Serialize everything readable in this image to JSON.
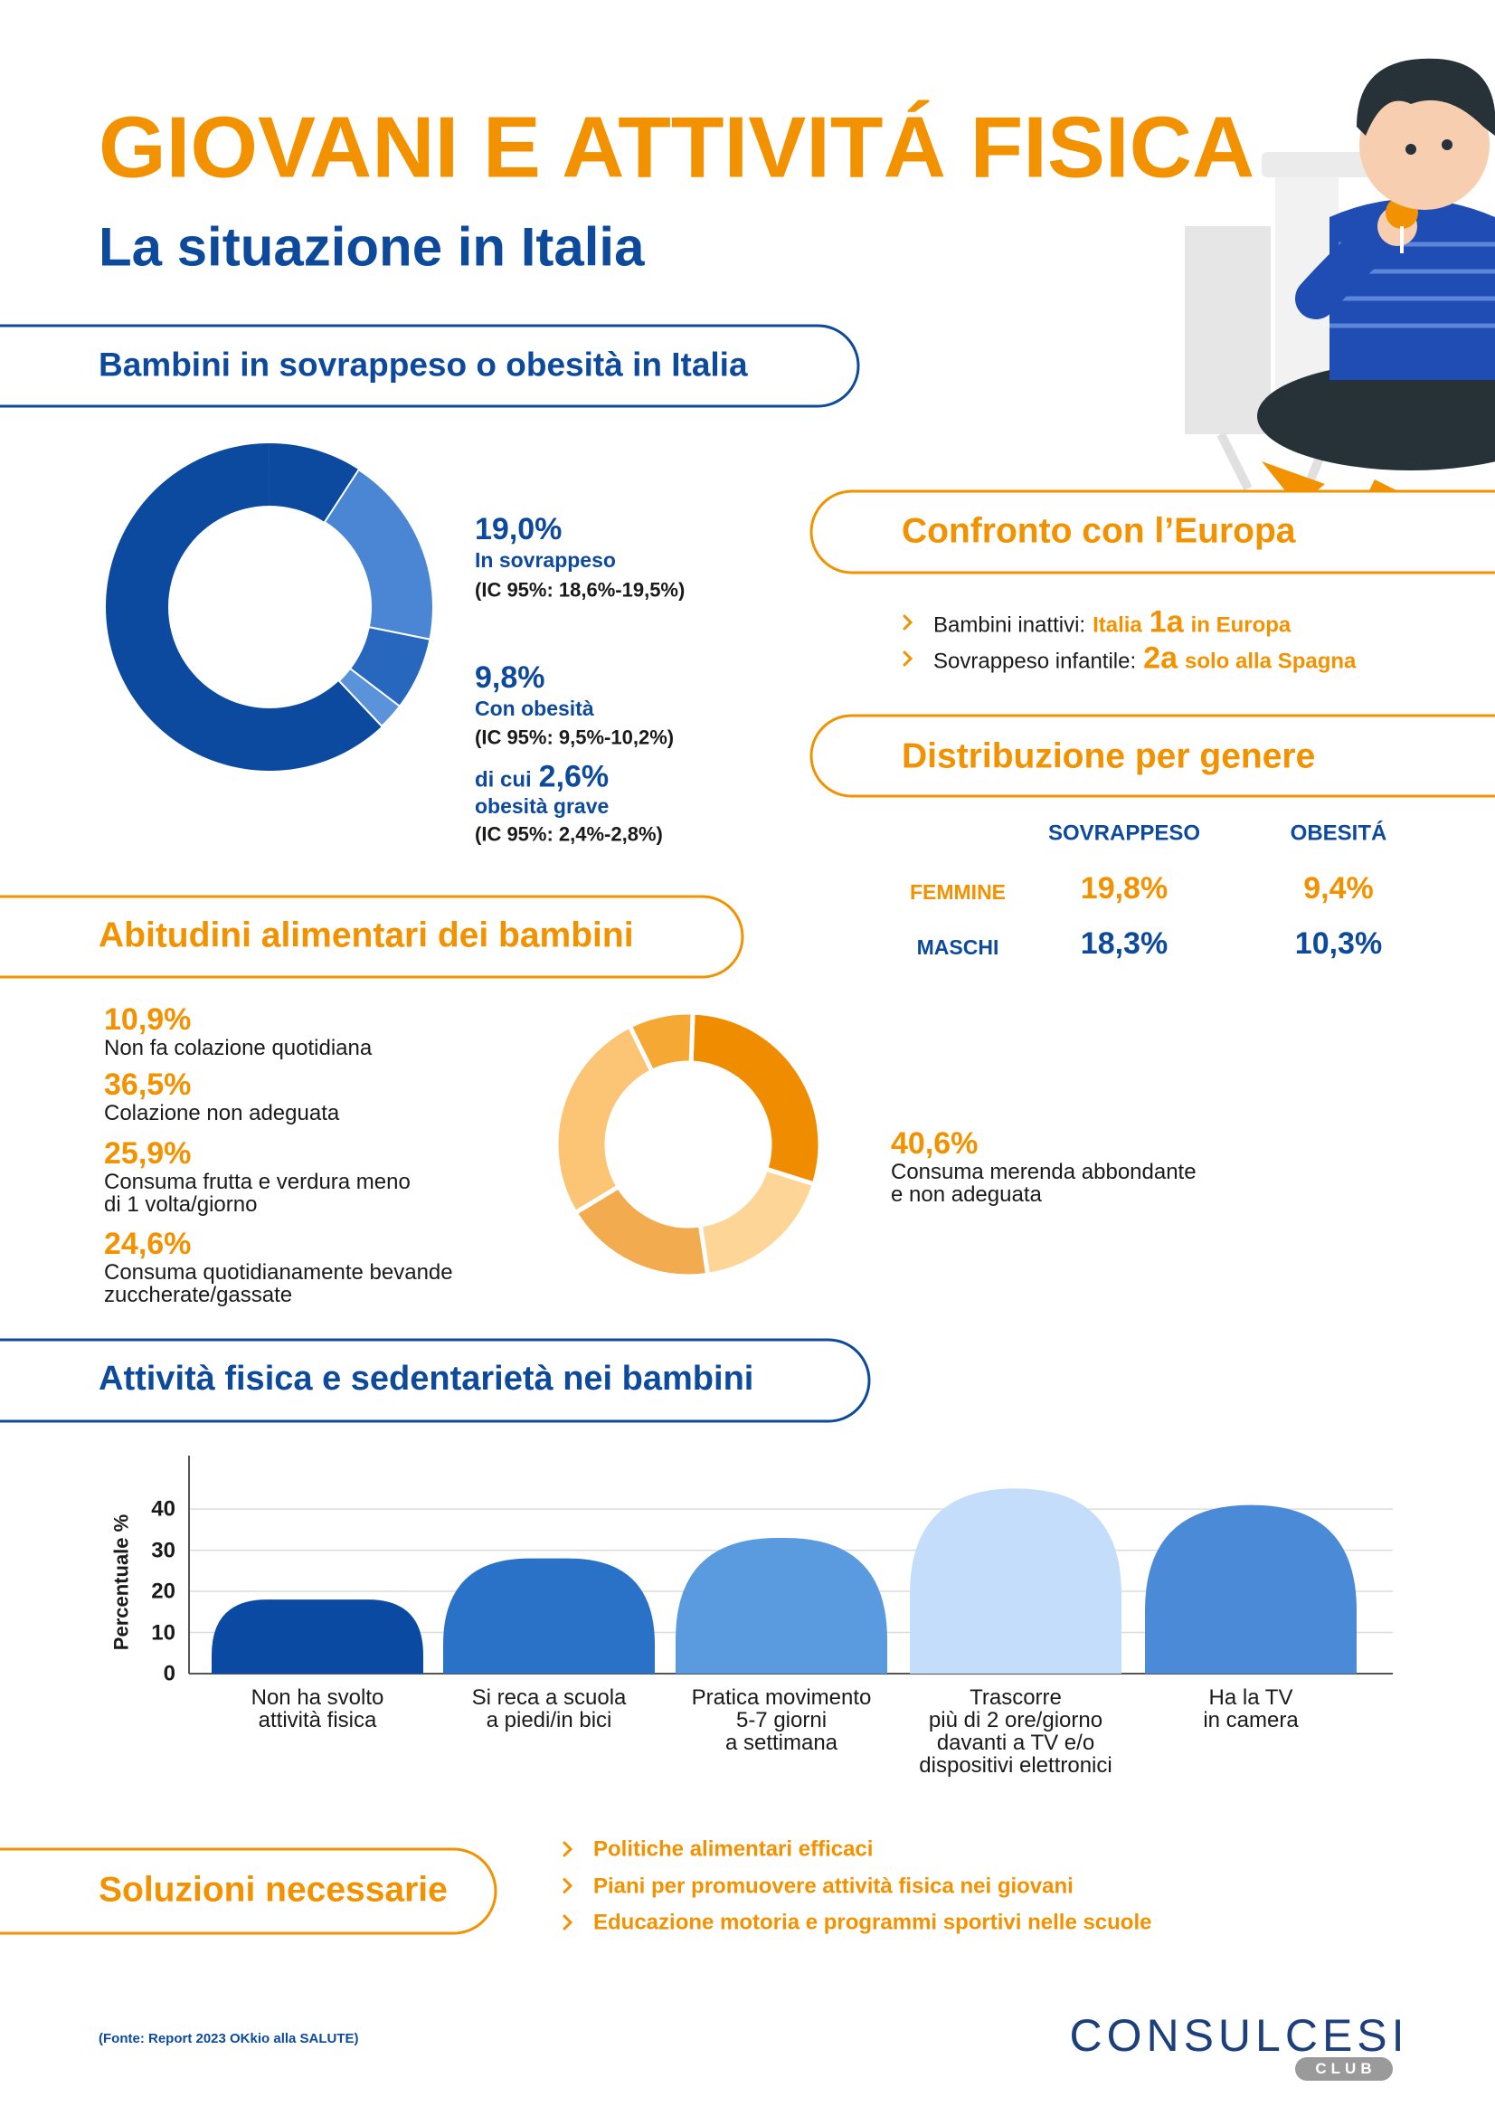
{
  "header": {
    "title": "GIOVANI E ATTIVITÁ FISICA",
    "subtitle": "La situazione in Italia"
  },
  "sections": {
    "overweight": "Bambini in sovrappeso o obesità in Italia",
    "europe": "Confronto con l’Europa",
    "gender": "Distribuzione per genere",
    "diet": "Abitudini alimentari dei bambini",
    "activity": "Attività fisica e sedentarietà nei bambini",
    "solutions": "Soluzioni necessarie"
  },
  "chart_data": [
    {
      "type": "donut",
      "categories": [
        "In sovrappeso",
        "Con obesità",
        "obesità grave"
      ],
      "values": [
        19.0,
        9.8,
        2.6
      ],
      "value_labels": [
        "19,0%",
        "9,8%",
        "2,6%"
      ],
      "intervals": [
        "(IC 95%: 18,6%-19,5%)",
        "(IC 95%: 9,5%-10,2%)",
        "(IC 95%: 2,4%-2,8%)"
      ],
      "subset_prefix": "di cui",
      "colors": [
        "#4a86d4",
        "#2767bd",
        "#5b93da"
      ],
      "base_color": "#0c4aa0"
    },
    {
      "type": "donut",
      "categories": [
        "Non fa colazione quotidiana",
        "Colazione non adeguata",
        "Consuma frutta e verdura meno\ndi 1 volta/giorno",
        "Consuma quotidianamente bevande\nzuccherate/gassate",
        "Consuma merenda abbondante\ne non adeguata"
      ],
      "values": [
        10.9,
        36.5,
        25.9,
        24.6,
        40.6
      ],
      "value_labels": [
        "10,9%",
        "36,5%",
        "25,9%",
        "24,6%",
        "40,6%"
      ],
      "colors": [
        "#f5a833",
        "#fbc575",
        "#f2ab4e",
        "#fdd596",
        "#f08c00"
      ]
    },
    {
      "type": "bar",
      "categories": [
        "Non ha svolto\nattività fisica",
        "Si reca a scuola\na piedi/in bici",
        "Pratica movimento\n5-7 giorni\na settimana",
        "Trascorre\npiù di 2 ore/giorno\ndavanti a TV e/o\ndispositivi elettronici",
        "Ha la TV\nin camera"
      ],
      "values": [
        18,
        28,
        33,
        45,
        41
      ],
      "colors": [
        "#0a4aa3",
        "#2a72c8",
        "#5a9be0",
        "#c4ddfb",
        "#4a8ad6"
      ],
      "ylim": [
        0,
        53
      ],
      "yticks": [
        0,
        10,
        20,
        30,
        40
      ],
      "ylabel": "Percentuale %",
      "grid": true
    }
  ],
  "europe": {
    "items": [
      {
        "label": "Bambini inattivi:",
        "highlight": "Italia",
        "rank": "1a",
        "suffix": "in Europa"
      },
      {
        "label": "Sovrappeso infantile:",
        "rank": "2a",
        "suffix": "solo alla Spagna"
      }
    ]
  },
  "gender": {
    "columns": [
      "SOVRAPPESO",
      "OBESITÁ"
    ],
    "rows": [
      {
        "label": "FEMMINE",
        "values": [
          "19,8%",
          "9,4%"
        ]
      },
      {
        "label": "MASCHI",
        "values": [
          "18,3%",
          "10,3%"
        ]
      }
    ]
  },
  "solutions": [
    "Politiche alimentari efficaci",
    "Piani per promuovere attività fisica nei giovani",
    "Educazione motoria e programmi sportivi nelle scuole"
  ],
  "source": "(Fonte: Report 2023 OKkio alla SALUTE)",
  "logo": {
    "name": "CONSULCESI",
    "tag": "CLUB"
  }
}
